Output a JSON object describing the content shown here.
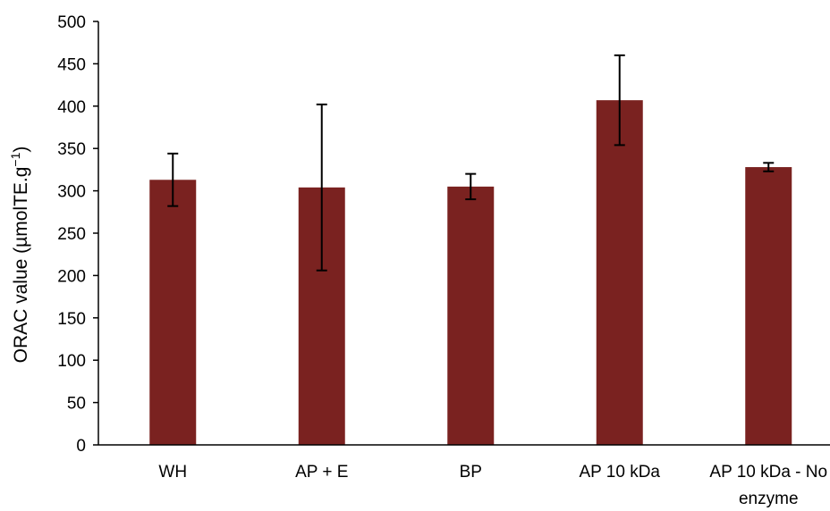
{
  "chart_data": {
    "type": "bar",
    "title": "",
    "xlabel": "",
    "ylabel": "ORAC value (µmolTE.g",
    "ylabel_superscript": "−1",
    "ylabel_close": ")",
    "categories": [
      [
        "WH"
      ],
      [
        "AP + E"
      ],
      [
        "BP"
      ],
      [
        "AP 10 kDa"
      ],
      [
        "AP 10 kDa - No",
        "enzyme"
      ]
    ],
    "values": [
      313,
      304,
      305,
      407,
      328
    ],
    "error": [
      31,
      98,
      15,
      53,
      5
    ],
    "ylim": [
      0,
      500
    ],
    "yticks": [
      0,
      50,
      100,
      150,
      200,
      250,
      300,
      350,
      400,
      450,
      500
    ],
    "grid": false,
    "bar_color": "#7a2220",
    "axis_color": "#000000"
  }
}
